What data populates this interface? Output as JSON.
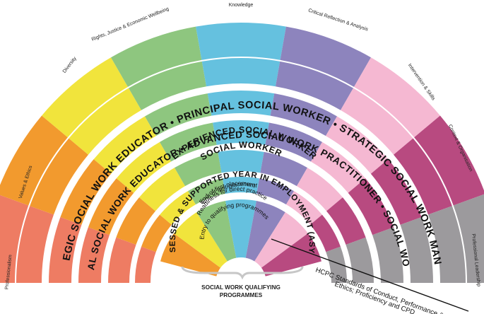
{
  "domains": [
    {
      "label": "Professionalism",
      "color": "#ee7c63"
    },
    {
      "label": "Values & Ethics",
      "color": "#f29a2e"
    },
    {
      "label": "Diversity",
      "color": "#f1e43c"
    },
    {
      "label": "Rights, Justice & Economic Wellbeing",
      "color": "#8ec67f"
    },
    {
      "label": "Knowledge",
      "color": "#65c1df"
    },
    {
      "label": "Critical Reflection & Analysis",
      "color": "#8d84bd"
    },
    {
      "label": "Intervention & Skills",
      "color": "#f5b8d2"
    },
    {
      "label": "Context & Organisation",
      "color": "#b84a80"
    },
    {
      "label": "Professional Leadership",
      "color": "#9c9a9d"
    }
  ],
  "ring_titles": [
    "STRATEGIC SOCIAL WORK EDUCATOR • PRINCIPAL SOCIAL WORKER • STRATEGIC SOCIAL WORK MANAGER",
    "PROFESSIONAL SOCIAL WORK EDUCATOR • ADVANCED SOCIAL WORK PRACTITIONER • SOCIAL WORK MANAGER",
    "EXPERIENCED SOCIAL WORKER",
    "SOCIAL WORKER",
    "ASSESSED & SUPPORTED YEAR IN EMPLOYMENT (ASYE)"
  ],
  "inner_stages": [
    "End of last placement",
    "End of first placement",
    "Readiness for direct practice",
    "Entry to qualifying programmes"
  ],
  "bottom_label": [
    "SOCIAL WORK QUALIFYING",
    "PROGRAMMES"
  ],
  "hcpc_label": [
    "HCPC Standards of Conduct, Performance &",
    "Ethics; Proficiency and CPD"
  ]
}
